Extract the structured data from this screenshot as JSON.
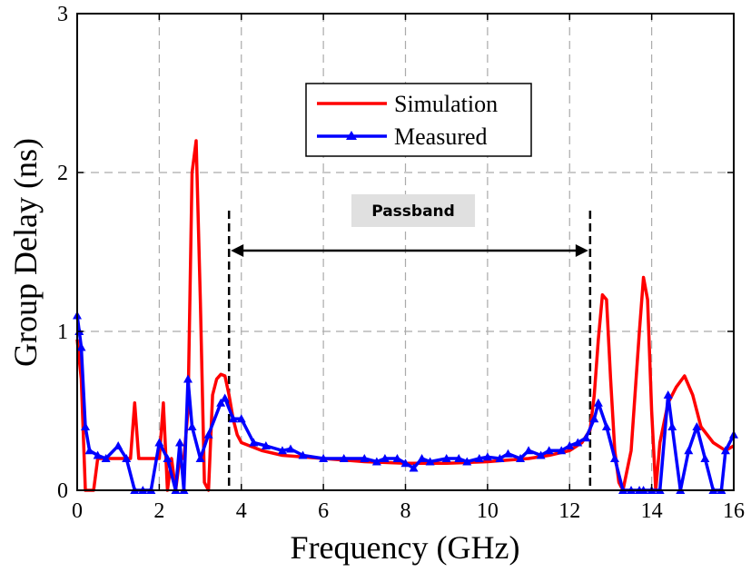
{
  "chart_data": {
    "type": "line",
    "title": "",
    "xlabel": "Frequency (GHz)",
    "ylabel": "Group Delay (ns)",
    "xlim": [
      0,
      16
    ],
    "ylim": [
      0,
      3
    ],
    "xticks": [
      "0",
      "2",
      "4",
      "6",
      "8",
      "10",
      "12",
      "14",
      "16"
    ],
    "yticks": [
      "0",
      "1",
      "2",
      "3"
    ],
    "grid": true,
    "legend_position": "top-center",
    "annotation": {
      "label": "Passband",
      "start": 3.7,
      "end": 12.5,
      "marker_top": 1.76
    },
    "series": [
      {
        "name": "Simulation",
        "color": "#ff0000",
        "marker": "none",
        "x": [
          0.0,
          0.1,
          0.2,
          0.3,
          0.4,
          0.5,
          1.0,
          1.3,
          1.4,
          1.5,
          1.6,
          2.0,
          2.1,
          2.2,
          2.3,
          2.4,
          2.5,
          2.6,
          2.7,
          2.8,
          2.9,
          3.0,
          3.1,
          3.2,
          3.3,
          3.4,
          3.5,
          3.6,
          3.7,
          3.8,
          3.9,
          4.0,
          4.5,
          5.0,
          6.0,
          7.0,
          8.0,
          9.0,
          10.0,
          11.0,
          11.5,
          12.0,
          12.3,
          12.5,
          12.6,
          12.7,
          12.8,
          12.9,
          13.0,
          13.1,
          13.2,
          13.3,
          13.5,
          13.7,
          13.8,
          13.9,
          14.0,
          14.1,
          14.2,
          14.4,
          14.6,
          14.8,
          15.0,
          15.2,
          15.5,
          15.8,
          16.0
        ],
        "y": [
          0.95,
          0.7,
          0.0,
          0.0,
          0.0,
          0.2,
          0.2,
          0.2,
          0.55,
          0.2,
          0.2,
          0.2,
          0.55,
          0.0,
          0.2,
          0.0,
          0.2,
          0.2,
          0.5,
          2.0,
          2.2,
          1.2,
          0.05,
          0.0,
          0.6,
          0.7,
          0.73,
          0.72,
          0.6,
          0.45,
          0.35,
          0.3,
          0.25,
          0.22,
          0.2,
          0.18,
          0.17,
          0.17,
          0.18,
          0.2,
          0.22,
          0.25,
          0.3,
          0.38,
          0.6,
          0.95,
          1.23,
          1.2,
          0.7,
          0.25,
          0.05,
          0.0,
          0.25,
          1.0,
          1.34,
          1.2,
          0.5,
          0.0,
          0.3,
          0.55,
          0.65,
          0.72,
          0.6,
          0.4,
          0.3,
          0.25,
          0.28
        ]
      },
      {
        "name": "Measured",
        "color": "#0000ff",
        "marker": "triangle",
        "x": [
          0.0,
          0.05,
          0.1,
          0.2,
          0.3,
          0.5,
          0.7,
          1.0,
          1.2,
          1.4,
          1.6,
          1.8,
          2.0,
          2.2,
          2.4,
          2.5,
          2.6,
          2.7,
          2.8,
          3.0,
          3.2,
          3.5,
          3.6,
          3.8,
          4.0,
          4.3,
          4.6,
          5.0,
          5.2,
          5.5,
          6.0,
          6.5,
          7.0,
          7.3,
          7.5,
          7.8,
          8.0,
          8.2,
          8.4,
          8.6,
          9.0,
          9.3,
          9.5,
          9.8,
          10.0,
          10.3,
          10.5,
          10.8,
          11.0,
          11.3,
          11.5,
          11.8,
          12.0,
          12.2,
          12.4,
          12.6,
          12.7,
          12.9,
          13.1,
          13.3,
          13.5,
          13.7,
          13.8,
          14.0,
          14.2,
          14.4,
          14.5,
          14.7,
          14.9,
          15.1,
          15.3,
          15.5,
          15.7,
          15.8,
          16.0
        ],
        "y": [
          1.1,
          1.0,
          0.9,
          0.4,
          0.25,
          0.22,
          0.2,
          0.28,
          0.2,
          0.0,
          0.0,
          0.0,
          0.3,
          0.2,
          0.0,
          0.3,
          0.0,
          0.7,
          0.4,
          0.2,
          0.35,
          0.55,
          0.58,
          0.45,
          0.45,
          0.3,
          0.28,
          0.25,
          0.26,
          0.22,
          0.2,
          0.2,
          0.2,
          0.18,
          0.2,
          0.2,
          0.17,
          0.14,
          0.2,
          0.18,
          0.2,
          0.2,
          0.18,
          0.2,
          0.21,
          0.2,
          0.23,
          0.2,
          0.25,
          0.22,
          0.25,
          0.25,
          0.28,
          0.3,
          0.33,
          0.45,
          0.55,
          0.4,
          0.2,
          0.0,
          0.0,
          0.0,
          0.0,
          0.0,
          0.0,
          0.6,
          0.4,
          0.0,
          0.25,
          0.4,
          0.2,
          0.0,
          0.0,
          0.25,
          0.35
        ]
      }
    ]
  }
}
